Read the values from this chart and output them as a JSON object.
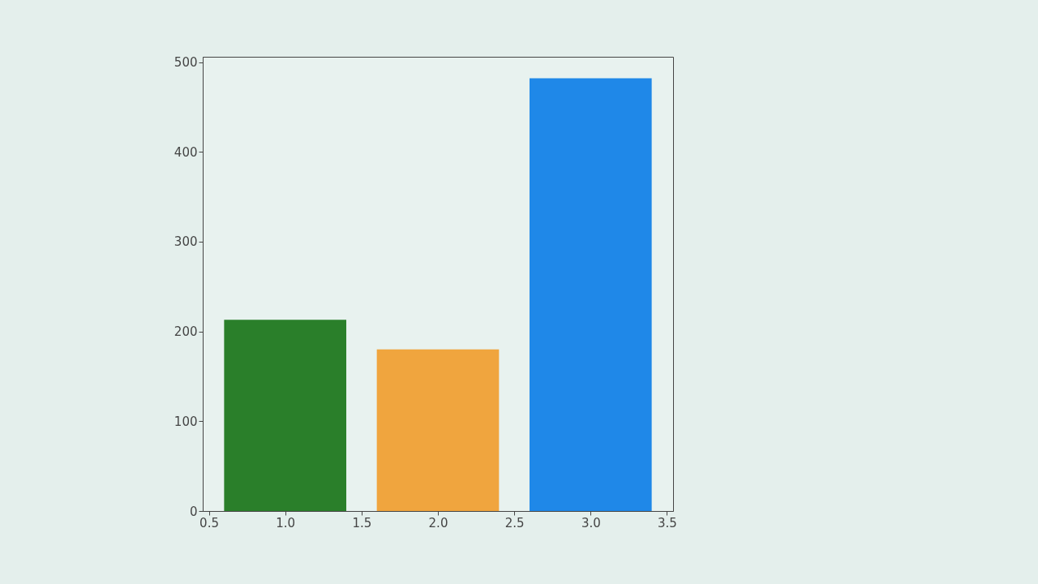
{
  "chart_data": {
    "type": "bar",
    "x": [
      1,
      2,
      3
    ],
    "values": [
      213,
      180,
      482
    ],
    "colors": [
      "#2a7f2a",
      "#f0a53e",
      "#1f88e8"
    ],
    "xlim": [
      0.46,
      3.54
    ],
    "xticks": [
      0.5,
      {
        "value": 1,
        "label": "1.0"
      },
      1.5,
      {
        "value": 2,
        "label": "2.0"
      },
      2.5,
      {
        "value": 3,
        "label": "3.0"
      },
      3.5
    ],
    "ylim": [
      0,
      506
    ],
    "yticks": [
      0,
      100,
      200,
      300,
      400,
      500
    ],
    "grid": false
  }
}
